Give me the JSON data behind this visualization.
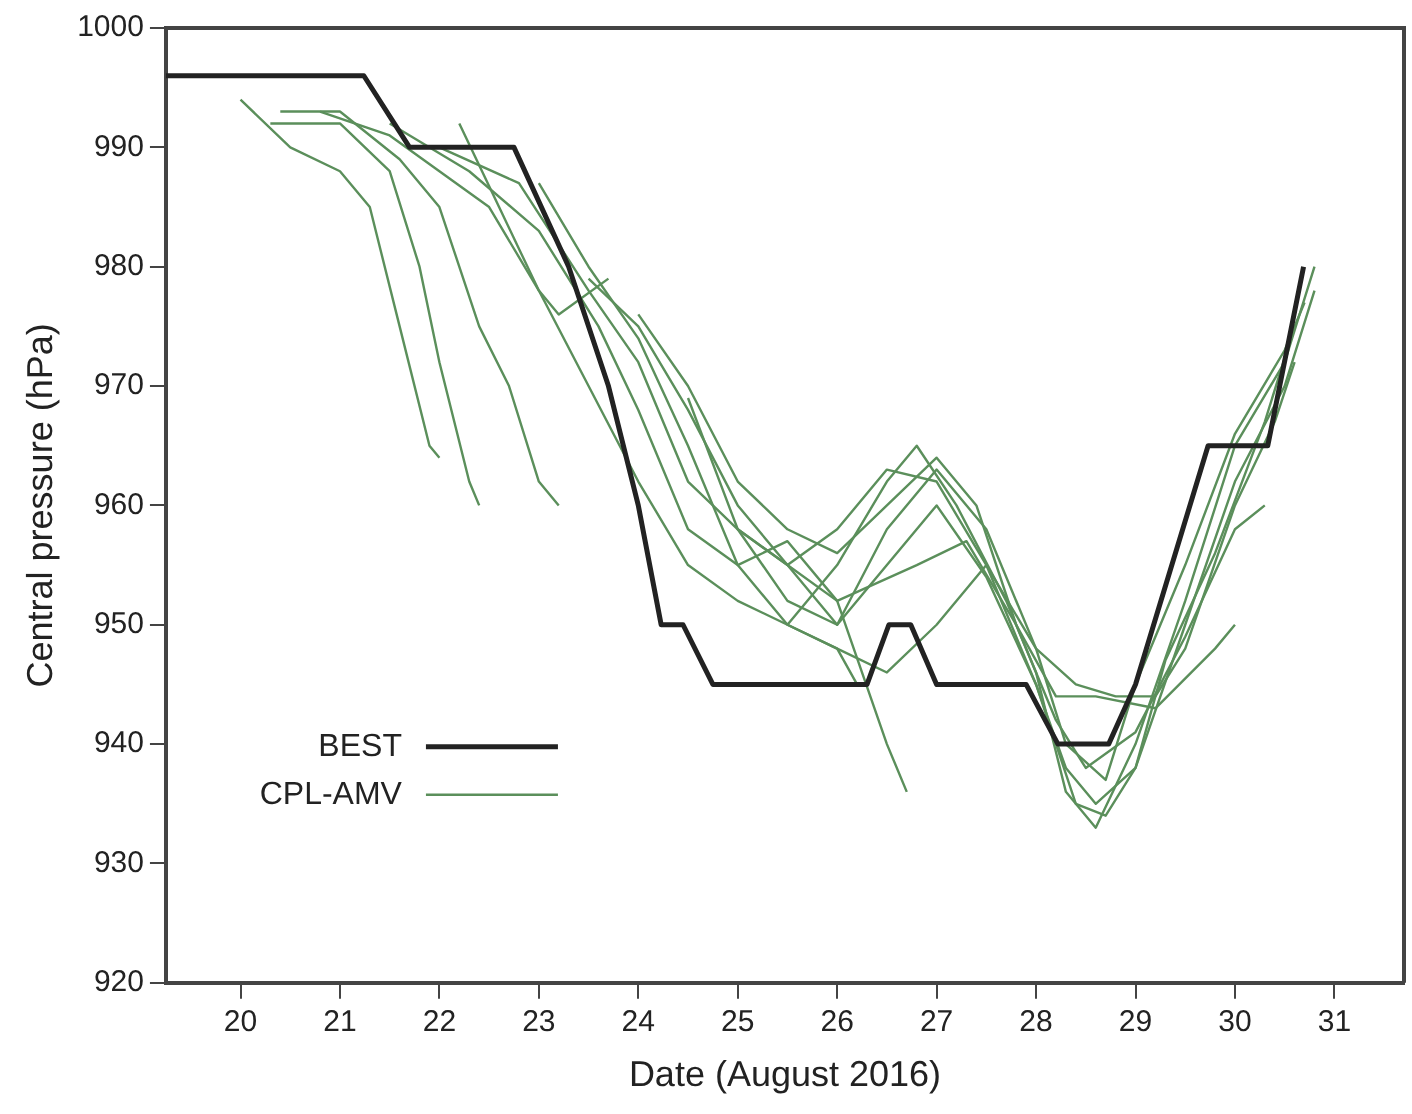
{
  "chart_data": {
    "type": "line",
    "xlabel": "Date (August 2016)",
    "ylabel": "Central pressure (hPa)",
    "xlim": [
      19.25,
      31.7
    ],
    "xticks": [
      20,
      21,
      22,
      23,
      24,
      25,
      26,
      27,
      28,
      29,
      30,
      31
    ],
    "ylim": [
      920,
      1000
    ],
    "yticks": [
      920,
      930,
      940,
      950,
      960,
      970,
      980,
      990,
      1000
    ],
    "grid": false,
    "legend": "bottom left",
    "marker": "none",
    "line_style": "solid",
    "series": [
      {
        "name": "BEST",
        "color": "#222222",
        "x": [
          19.25,
          21.24,
          21.7,
          22.75,
          23.3,
          23.7,
          24.0,
          24.23,
          24.45,
          24.75,
          26.3,
          26.52,
          26.74,
          27.0,
          27.9,
          28.22,
          28.73,
          29.0,
          29.73,
          30.33,
          30.45,
          30.69
        ],
        "values": [
          996,
          996,
          990,
          990,
          980,
          970,
          960,
          950,
          950,
          945,
          945,
          950,
          950,
          945,
          945,
          940,
          940,
          945,
          965,
          965,
          970,
          980
        ]
      },
      {
        "name": "CPL-AMV",
        "color": "#5b8f5b",
        "x": [
          22.0,
          22.8,
          23.5,
          24.0,
          24.5,
          25.0,
          25.5,
          26.0,
          26.5,
          27.0,
          27.5,
          28.0,
          28.3,
          28.6,
          29.0,
          29.5,
          30.0,
          30.5,
          30.8
        ],
        "values": [
          990,
          987,
          978,
          972,
          962,
          958,
          955,
          958,
          963,
          962,
          955,
          945,
          938,
          935,
          938,
          950,
          962,
          970,
          978
        ]
      },
      {
        "color": "#5b8f5b",
        "x": [
          20.0,
          20.5,
          21.0,
          21.3,
          21.6,
          21.9,
          22.0
        ],
        "values": [
          994,
          990,
          988,
          985,
          975,
          965,
          964
        ]
      },
      {
        "color": "#5b8f5b",
        "x": [
          20.3,
          21.0,
          21.5,
          21.8,
          22.0,
          22.3,
          22.4
        ],
        "values": [
          992,
          992,
          988,
          980,
          972,
          962,
          960
        ]
      },
      {
        "color": "#5b8f5b",
        "x": [
          20.4,
          21.0,
          21.6,
          22.0,
          22.4,
          22.7,
          23.0,
          23.2
        ],
        "values": [
          993,
          993,
          989,
          985,
          975,
          970,
          962,
          960
        ]
      },
      {
        "color": "#5b8f5b",
        "x": [
          22.2,
          22.6,
          23.0,
          23.2,
          23.7
        ],
        "values": [
          992,
          985,
          978,
          976,
          979
        ]
      },
      {
        "color": "#5b8f5b",
        "x": [
          20.8,
          21.5,
          22.0,
          22.5,
          23.0,
          23.5,
          24.0,
          24.5,
          25.0,
          25.5,
          26.0,
          26.2
        ],
        "values": [
          993,
          991,
          988,
          985,
          978,
          970,
          962,
          955,
          952,
          950,
          948,
          945
        ]
      },
      {
        "color": "#5b8f5b",
        "x": [
          21.5,
          22.3,
          23.0,
          23.6,
          24.0,
          24.5,
          25.0,
          25.5,
          26.0,
          26.5,
          26.7
        ],
        "values": [
          992,
          988,
          983,
          975,
          968,
          958,
          955,
          957,
          952,
          940,
          936
        ]
      },
      {
        "color": "#5b8f5b",
        "x": [
          23.0,
          23.5,
          24.0,
          24.5,
          25.0,
          25.5,
          26.0,
          26.5,
          26.8,
          27.2,
          27.7,
          28.0,
          28.3,
          28.6,
          29.0,
          29.5,
          30.0,
          30.5,
          30.8
        ],
        "values": [
          987,
          980,
          974,
          965,
          955,
          950,
          955,
          962,
          965,
          960,
          952,
          946,
          936,
          933,
          940,
          952,
          965,
          972,
          980
        ]
      },
      {
        "color": "#5b8f5b",
        "x": [
          23.5,
          24.0,
          24.5,
          25.0,
          25.5,
          26.0,
          26.5,
          27.0,
          27.5,
          28.0,
          28.3,
          28.7,
          29.0,
          29.5,
          30.0,
          30.5,
          30.7
        ],
        "values": [
          979,
          975,
          968,
          960,
          955,
          950,
          958,
          963,
          958,
          948,
          940,
          937,
          945,
          955,
          966,
          973,
          977
        ]
      },
      {
        "color": "#5b8f5b",
        "x": [
          24.0,
          24.5,
          25.0,
          25.5,
          26.0,
          26.5,
          27.0,
          27.4,
          27.8,
          28.2,
          28.5,
          29.0,
          29.5,
          30.0,
          30.3
        ],
        "values": [
          976,
          970,
          962,
          958,
          956,
          960,
          964,
          960,
          950,
          942,
          938,
          941,
          949,
          958,
          960
        ]
      },
      {
        "color": "#5b8f5b",
        "x": [
          24.5,
          25.0,
          25.5,
          26.0,
          26.8,
          27.3,
          27.8,
          28.2,
          28.6,
          29.2,
          29.8,
          30.0
        ],
        "values": [
          969,
          958,
          955,
          952,
          955,
          957,
          950,
          944,
          944,
          943,
          948,
          950
        ]
      },
      {
        "color": "#5b8f5b",
        "x": [
          25.0,
          25.5,
          26.0,
          26.5,
          27.0,
          27.5,
          28.0,
          28.4,
          28.7,
          29.0,
          29.3,
          29.8,
          30.3,
          30.6
        ],
        "values": [
          958,
          952,
          950,
          955,
          960,
          954,
          945,
          935,
          934,
          938,
          947,
          956,
          967,
          975
        ]
      },
      {
        "color": "#5b8f5b",
        "x": [
          25.5,
          26.0,
          26.5,
          27.0,
          27.5,
          28.0,
          28.4,
          28.8,
          29.2,
          29.5,
          30.0,
          30.4,
          30.6
        ],
        "values": [
          950,
          948,
          946,
          950,
          955,
          948,
          945,
          944,
          944,
          948,
          960,
          967,
          972
        ]
      }
    ]
  }
}
